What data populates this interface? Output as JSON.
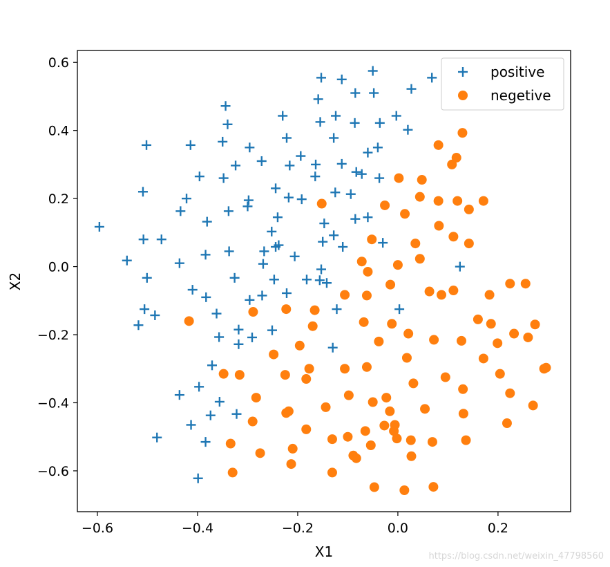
{
  "chart_data": {
    "type": "scatter",
    "xlabel": "X1",
    "ylabel": "X2",
    "xlim": [
      -0.64,
      0.345
    ],
    "ylim": [
      -0.72,
      0.635
    ],
    "xticks": [
      -0.6,
      -0.4,
      -0.2,
      0.0,
      0.2
    ],
    "xtick_labels": [
      "−0.6",
      "−0.4",
      "−0.2",
      "0.0",
      "0.2"
    ],
    "yticks": [
      -0.6,
      -0.4,
      -0.2,
      0.0,
      0.2,
      0.4,
      0.6
    ],
    "ytick_labels": [
      "−0.6",
      "−0.4",
      "−0.2",
      "0.0",
      "0.2",
      "0.4",
      "0.6"
    ],
    "grid": false,
    "legend_position": "top-right",
    "series": [
      {
        "name": "positive",
        "marker": "plus",
        "color": "#1f77b4",
        "points": [
          [
            -0.153,
            0.555
          ],
          [
            -0.112,
            0.55
          ],
          [
            -0.05,
            0.575
          ],
          [
            -0.085,
            0.51
          ],
          [
            -0.048,
            0.51
          ],
          [
            0.027,
            0.522
          ],
          [
            0.068,
            0.555
          ],
          [
            -0.159,
            0.492
          ],
          [
            -0.344,
            0.472
          ],
          [
            -0.23,
            0.443
          ],
          [
            -0.124,
            0.443
          ],
          [
            -0.155,
            0.425
          ],
          [
            -0.086,
            0.422
          ],
          [
            -0.036,
            0.422
          ],
          [
            -0.003,
            0.443
          ],
          [
            -0.34,
            0.418
          ],
          [
            0.02,
            0.402
          ],
          [
            -0.222,
            0.378
          ],
          [
            -0.128,
            0.378
          ],
          [
            -0.502,
            0.357
          ],
          [
            -0.414,
            0.357
          ],
          [
            -0.35,
            0.367
          ],
          [
            -0.296,
            0.35
          ],
          [
            -0.04,
            0.35
          ],
          [
            -0.194,
            0.325
          ],
          [
            -0.06,
            0.335
          ],
          [
            -0.272,
            0.31
          ],
          [
            -0.324,
            0.297
          ],
          [
            -0.216,
            0.297
          ],
          [
            -0.164,
            0.3
          ],
          [
            -0.112,
            0.302
          ],
          [
            -0.083,
            0.278
          ],
          [
            -0.072,
            0.272
          ],
          [
            -0.396,
            0.265
          ],
          [
            -0.348,
            0.26
          ],
          [
            -0.165,
            0.265
          ],
          [
            -0.037,
            0.26
          ],
          [
            -0.509,
            0.22
          ],
          [
            -0.244,
            0.23
          ],
          [
            -0.125,
            0.218
          ],
          [
            -0.094,
            0.213
          ],
          [
            -0.422,
            0.2
          ],
          [
            -0.298,
            0.195
          ],
          [
            -0.218,
            0.203
          ],
          [
            -0.192,
            0.198
          ],
          [
            -0.3,
            0.177
          ],
          [
            -0.434,
            0.163
          ],
          [
            -0.338,
            0.163
          ],
          [
            -0.24,
            0.145
          ],
          [
            -0.381,
            0.132
          ],
          [
            -0.147,
            0.127
          ],
          [
            -0.085,
            0.14
          ],
          [
            -0.06,
            0.145
          ],
          [
            -0.252,
            0.103
          ],
          [
            -0.128,
            0.092
          ],
          [
            -0.508,
            0.08
          ],
          [
            -0.472,
            0.08
          ],
          [
            -0.15,
            0.073
          ],
          [
            -0.11,
            0.058
          ],
          [
            -0.03,
            0.07
          ],
          [
            -0.238,
            0.063
          ],
          [
            -0.244,
            0.058
          ],
          [
            -0.337,
            0.045
          ],
          [
            -0.267,
            0.045
          ],
          [
            -0.384,
            0.035
          ],
          [
            -0.206,
            0.03
          ],
          [
            -0.541,
            0.018
          ],
          [
            -0.436,
            0.01
          ],
          [
            -0.269,
            0.008
          ],
          [
            -0.153,
            -0.008
          ],
          [
            0.124,
            0.0
          ],
          [
            -0.501,
            -0.033
          ],
          [
            -0.326,
            -0.033
          ],
          [
            -0.247,
            -0.038
          ],
          [
            -0.182,
            -0.038
          ],
          [
            -0.156,
            -0.04
          ],
          [
            -0.142,
            -0.048
          ],
          [
            -0.41,
            -0.068
          ],
          [
            -0.222,
            -0.078
          ],
          [
            -0.271,
            -0.085
          ],
          [
            -0.383,
            -0.09
          ],
          [
            -0.296,
            -0.098
          ],
          [
            -0.506,
            -0.125
          ],
          [
            -0.122,
            -0.125
          ],
          [
            0.003,
            -0.125
          ],
          [
            -0.485,
            -0.143
          ],
          [
            -0.362,
            -0.138
          ],
          [
            -0.518,
            -0.172
          ],
          [
            -0.318,
            -0.185
          ],
          [
            -0.251,
            -0.187
          ],
          [
            -0.357,
            -0.207
          ],
          [
            -0.291,
            -0.208
          ],
          [
            -0.318,
            -0.228
          ],
          [
            -0.13,
            -0.238
          ],
          [
            -0.371,
            -0.29
          ],
          [
            -0.397,
            -0.353
          ],
          [
            -0.436,
            -0.377
          ],
          [
            -0.356,
            -0.397
          ],
          [
            -0.374,
            -0.437
          ],
          [
            -0.322,
            -0.433
          ],
          [
            -0.413,
            -0.465
          ],
          [
            -0.384,
            -0.515
          ],
          [
            -0.481,
            -0.502
          ],
          [
            -0.399,
            -0.622
          ],
          [
            -0.596,
            0.117
          ]
        ]
      },
      {
        "name": "negetive",
        "marker": "circle",
        "color": "#ff7f0e",
        "points": [
          [
            0.129,
            0.393
          ],
          [
            0.081,
            0.357
          ],
          [
            0.117,
            0.32
          ],
          [
            0.108,
            0.3
          ],
          [
            0.002,
            0.26
          ],
          [
            0.048,
            0.255
          ],
          [
            0.044,
            0.205
          ],
          [
            0.081,
            0.193
          ],
          [
            0.119,
            0.193
          ],
          [
            0.171,
            0.193
          ],
          [
            -0.152,
            0.185
          ],
          [
            -0.026,
            0.18
          ],
          [
            0.142,
            0.168
          ],
          [
            0.014,
            0.155
          ],
          [
            0.082,
            0.12
          ],
          [
            0.111,
            0.088
          ],
          [
            -0.052,
            0.08
          ],
          [
            0.035,
            0.068
          ],
          [
            0.142,
            0.068
          ],
          [
            -0.072,
            0.015
          ],
          [
            -0.06,
            -0.015
          ],
          [
            0.0,
            0.005
          ],
          [
            0.044,
            0.023
          ],
          [
            -0.015,
            -0.053
          ],
          [
            0.063,
            -0.073
          ],
          [
            0.087,
            -0.083
          ],
          [
            0.111,
            -0.07
          ],
          [
            0.224,
            -0.05
          ],
          [
            0.255,
            -0.05
          ],
          [
            -0.106,
            -0.083
          ],
          [
            -0.062,
            -0.085
          ],
          [
            0.183,
            -0.083
          ],
          [
            -0.223,
            -0.125
          ],
          [
            -0.166,
            -0.128
          ],
          [
            -0.289,
            -0.133
          ],
          [
            -0.417,
            -0.16
          ],
          [
            -0.068,
            -0.163
          ],
          [
            -0.012,
            -0.168
          ],
          [
            0.16,
            -0.155
          ],
          [
            0.186,
            -0.168
          ],
          [
            0.274,
            -0.17
          ],
          [
            -0.17,
            -0.175
          ],
          [
            0.021,
            -0.197
          ],
          [
            0.232,
            -0.197
          ],
          [
            0.26,
            -0.208
          ],
          [
            -0.038,
            -0.22
          ],
          [
            0.072,
            -0.215
          ],
          [
            0.127,
            -0.218
          ],
          [
            0.199,
            -0.225
          ],
          [
            -0.196,
            -0.232
          ],
          [
            -0.248,
            -0.258
          ],
          [
            0.018,
            -0.268
          ],
          [
            0.171,
            -0.27
          ],
          [
            -0.062,
            -0.295
          ],
          [
            -0.177,
            -0.3
          ],
          [
            -0.106,
            -0.3
          ],
          [
            0.292,
            -0.3
          ],
          [
            0.296,
            -0.297
          ],
          [
            -0.348,
            -0.315
          ],
          [
            -0.316,
            -0.318
          ],
          [
            -0.225,
            -0.318
          ],
          [
            -0.183,
            -0.33
          ],
          [
            0.095,
            -0.325
          ],
          [
            0.204,
            -0.315
          ],
          [
            0.031,
            -0.343
          ],
          [
            0.13,
            -0.36
          ],
          [
            -0.283,
            -0.385
          ],
          [
            -0.098,
            -0.378
          ],
          [
            0.224,
            -0.372
          ],
          [
            -0.05,
            -0.398
          ],
          [
            -0.023,
            -0.385
          ],
          [
            -0.144,
            -0.413
          ],
          [
            0.054,
            -0.418
          ],
          [
            -0.223,
            -0.43
          ],
          [
            -0.218,
            -0.425
          ],
          [
            -0.016,
            -0.425
          ],
          [
            0.131,
            -0.432
          ],
          [
            0.27,
            -0.408
          ],
          [
            -0.29,
            -0.455
          ],
          [
            -0.183,
            -0.478
          ],
          [
            -0.027,
            -0.467
          ],
          [
            -0.006,
            -0.465
          ],
          [
            0.218,
            -0.46
          ],
          [
            -0.008,
            -0.483
          ],
          [
            -0.065,
            -0.483
          ],
          [
            -0.1,
            -0.5
          ],
          [
            -0.131,
            -0.507
          ],
          [
            -0.002,
            -0.505
          ],
          [
            0.026,
            -0.51
          ],
          [
            0.069,
            -0.515
          ],
          [
            0.136,
            -0.51
          ],
          [
            -0.334,
            -0.52
          ],
          [
            -0.054,
            -0.525
          ],
          [
            -0.21,
            -0.535
          ],
          [
            -0.275,
            -0.548
          ],
          [
            -0.089,
            -0.555
          ],
          [
            -0.083,
            -0.563
          ],
          [
            0.027,
            -0.557
          ],
          [
            -0.213,
            -0.58
          ],
          [
            -0.33,
            -0.605
          ],
          [
            -0.131,
            -0.605
          ],
          [
            -0.047,
            -0.648
          ],
          [
            0.013,
            -0.657
          ],
          [
            0.071,
            -0.647
          ]
        ]
      }
    ]
  },
  "watermark": "https://blog.csdn.net/weixin_47798560"
}
